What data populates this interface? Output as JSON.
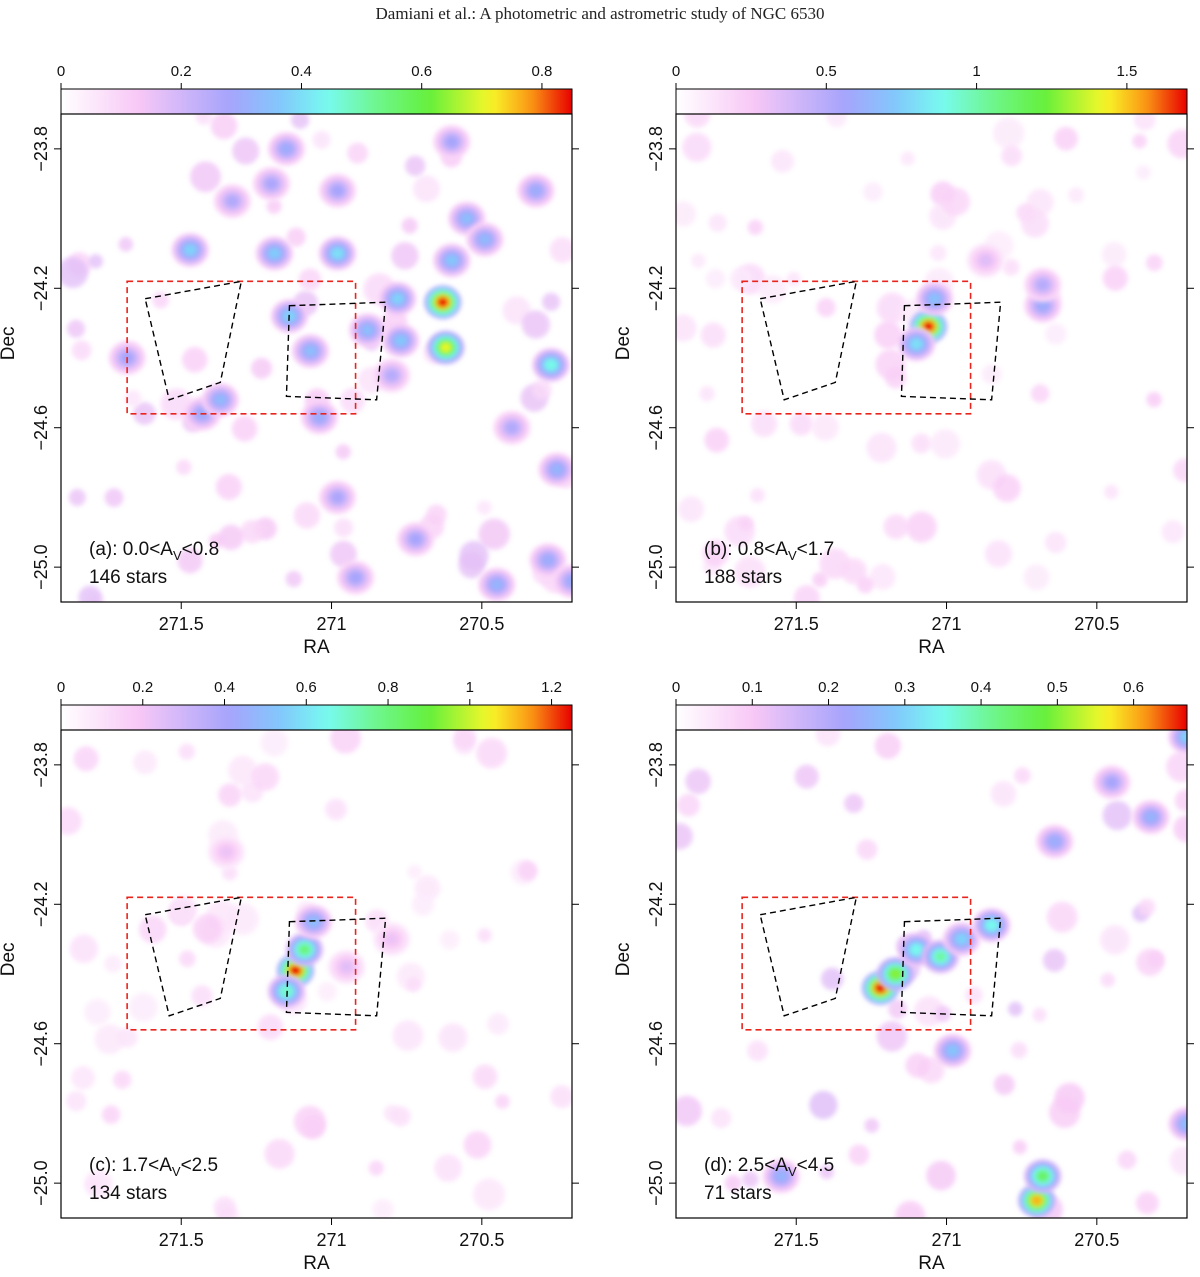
{
  "header": "Damiani et al.: A photometric and astrometric study of NGC 6530",
  "chart_data": [
    {
      "type": "heatmap",
      "panel": "a",
      "xlabel": "RA",
      "ylabel": "Dec",
      "xlim": [
        271.9,
        270.2
      ],
      "ylim": [
        -25.1,
        -23.7
      ],
      "x_ticks": [
        271.5,
        271,
        270.5
      ],
      "x_tick_labels": [
        "271.5",
        "271",
        "270.5"
      ],
      "y_ticks": [
        -23.8,
        -24.2,
        -24.6,
        -25.0
      ],
      "y_tick_labels": [
        "−23.8",
        "−24.2",
        "−24.6",
        "−25.0"
      ],
      "colorbar": {
        "min": 0,
        "max": 0.85,
        "ticks": [
          0,
          0.2,
          0.4,
          0.6,
          0.8
        ],
        "tick_labels": [
          "0",
          "0.2",
          "0.4",
          "0.6",
          "0.8"
        ]
      },
      "annotation": {
        "prefix": "(a): 0.0<A",
        "sub": "V",
        "suffix": "<0.8",
        "count": "146 stars"
      },
      "peaks": [
        {
          "ra": 270.63,
          "dec": -24.24,
          "value": 0.84
        },
        {
          "ra": 270.62,
          "dec": -24.37,
          "value": 0.7
        },
        {
          "ra": 270.27,
          "dec": -24.42,
          "value": 0.45
        },
        {
          "ra": 270.77,
          "dec": -24.35,
          "value": 0.36
        },
        {
          "ra": 270.78,
          "dec": -24.23,
          "value": 0.38
        },
        {
          "ra": 271.14,
          "dec": -24.28,
          "value": 0.38
        },
        {
          "ra": 271.47,
          "dec": -24.09,
          "value": 0.38
        },
        {
          "ra": 271.19,
          "dec": -24.1,
          "value": 0.37
        },
        {
          "ra": 270.98,
          "dec": -24.1,
          "value": 0.4
        },
        {
          "ra": 270.88,
          "dec": -24.32,
          "value": 0.34
        },
        {
          "ra": 270.55,
          "dec": -24.0,
          "value": 0.34
        },
        {
          "ra": 270.6,
          "dec": -24.12,
          "value": 0.36
        },
        {
          "ra": 270.49,
          "dec": -24.06,
          "value": 0.33
        },
        {
          "ra": 271.07,
          "dec": -24.38,
          "value": 0.34
        },
        {
          "ra": 271.43,
          "dec": -24.56,
          "value": 0.3
        },
        {
          "ra": 271.37,
          "dec": -24.52,
          "value": 0.33
        },
        {
          "ra": 271.04,
          "dec": -24.57,
          "value": 0.3
        },
        {
          "ra": 271.15,
          "dec": -23.8,
          "value": 0.3
        },
        {
          "ra": 270.98,
          "dec": -23.92,
          "value": 0.28
        },
        {
          "ra": 270.32,
          "dec": -23.92,
          "value": 0.3
        },
        {
          "ra": 270.6,
          "dec": -23.78,
          "value": 0.28
        },
        {
          "ra": 271.2,
          "dec": -23.9,
          "value": 0.27
        },
        {
          "ra": 271.33,
          "dec": -23.95,
          "value": 0.26
        },
        {
          "ra": 270.25,
          "dec": -24.72,
          "value": 0.32
        },
        {
          "ra": 270.28,
          "dec": -24.98,
          "value": 0.3
        },
        {
          "ra": 270.2,
          "dec": -25.04,
          "value": 0.3
        },
        {
          "ra": 270.72,
          "dec": -24.92,
          "value": 0.28
        },
        {
          "ra": 270.98,
          "dec": -24.8,
          "value": 0.27
        },
        {
          "ra": 271.68,
          "dec": -24.4,
          "value": 0.28
        },
        {
          "ra": 270.92,
          "dec": -25.03,
          "value": 0.28
        },
        {
          "ra": 270.45,
          "dec": -25.05,
          "value": 0.32
        },
        {
          "ra": 270.8,
          "dec": -24.45,
          "value": 0.25
        },
        {
          "ra": 270.4,
          "dec": -24.6,
          "value": 0.26
        }
      ],
      "background": {
        "level": 0.12,
        "blob_count": 70,
        "seed": 11
      }
    },
    {
      "type": "heatmap",
      "panel": "b",
      "xlabel": "RA",
      "ylabel": "Dec",
      "xlim": [
        271.9,
        270.2
      ],
      "ylim": [
        -25.1,
        -23.7
      ],
      "x_ticks": [
        271.5,
        271,
        270.5
      ],
      "x_tick_labels": [
        "271.5",
        "271",
        "270.5"
      ],
      "y_ticks": [
        -23.8,
        -24.2,
        -24.6,
        -25.0
      ],
      "y_tick_labels": [
        "−23.8",
        "−24.2",
        "−24.6",
        "−25.0"
      ],
      "colorbar": {
        "min": 0,
        "max": 1.7,
        "ticks": [
          0,
          0.5,
          1,
          1.5
        ],
        "tick_labels": [
          "0",
          "0.5",
          "1",
          "1.5"
        ]
      },
      "annotation": {
        "prefix": "(b): 0.8<A",
        "sub": "V",
        "suffix": "<1.7",
        "count": "188 stars"
      },
      "peaks": [
        {
          "ra": 271.06,
          "dec": -24.31,
          "value": 1.7
        },
        {
          "ra": 271.04,
          "dec": -24.23,
          "value": 0.7
        },
        {
          "ra": 271.1,
          "dec": -24.36,
          "value": 0.8
        },
        {
          "ra": 270.68,
          "dec": -24.25,
          "value": 0.6
        },
        {
          "ra": 270.68,
          "dec": -24.19,
          "value": 0.5
        },
        {
          "ra": 270.87,
          "dec": -24.12,
          "value": 0.35
        }
      ],
      "background": {
        "level": 0.18,
        "blob_count": 80,
        "seed": 23
      }
    },
    {
      "type": "heatmap",
      "panel": "c",
      "xlabel": "RA",
      "ylabel": "Dec",
      "xlim": [
        271.9,
        270.2
      ],
      "ylim": [
        -25.1,
        -23.7
      ],
      "x_ticks": [
        271.5,
        271,
        270.5
      ],
      "x_tick_labels": [
        "271.5",
        "271",
        "270.5"
      ],
      "y_ticks": [
        -23.8,
        -24.2,
        -24.6,
        -25.0
      ],
      "y_tick_labels": [
        "−23.8",
        "−24.2",
        "−24.6",
        "−25.0"
      ],
      "colorbar": {
        "min": 0,
        "max": 1.25,
        "ticks": [
          0,
          0.2,
          0.4,
          0.6,
          0.8,
          1,
          1.2
        ],
        "tick_labels": [
          "0",
          "0.2",
          "0.4",
          "0.6",
          "0.8",
          "1",
          "1.2"
        ]
      },
      "annotation": {
        "prefix": "(c): 1.7<A",
        "sub": "V",
        "suffix": "<2.5",
        "count": "134 stars"
      },
      "peaks": [
        {
          "ra": 271.12,
          "dec": -24.39,
          "value": 1.25
        },
        {
          "ra": 271.09,
          "dec": -24.33,
          "value": 0.8
        },
        {
          "ra": 271.15,
          "dec": -24.45,
          "value": 0.7
        },
        {
          "ra": 271.06,
          "dec": -24.25,
          "value": 0.5
        },
        {
          "ra": 270.95,
          "dec": -24.38,
          "value": 0.25
        },
        {
          "ra": 270.8,
          "dec": -24.3,
          "value": 0.22
        },
        {
          "ra": 271.35,
          "dec": -24.05,
          "value": 0.22
        }
      ],
      "background": {
        "level": 0.12,
        "blob_count": 70,
        "seed": 37
      }
    },
    {
      "type": "heatmap",
      "panel": "d",
      "xlabel": "RA",
      "ylabel": "Dec",
      "xlim": [
        271.9,
        270.2
      ],
      "ylim": [
        -25.1,
        -23.7
      ],
      "x_ticks": [
        271.5,
        271,
        270.5
      ],
      "x_tick_labels": [
        "271.5",
        "271",
        "270.5"
      ],
      "y_ticks": [
        -23.8,
        -24.2,
        -24.6,
        -25.0
      ],
      "y_tick_labels": [
        "−23.8",
        "−24.2",
        "−24.6",
        "−25.0"
      ],
      "colorbar": {
        "min": 0,
        "max": 0.67,
        "ticks": [
          0,
          0.1,
          0.2,
          0.3,
          0.4,
          0.5,
          0.6
        ],
        "tick_labels": [
          "0",
          "0.1",
          "0.2",
          "0.3",
          "0.4",
          "0.5",
          "0.6"
        ]
      },
      "annotation": {
        "prefix": "(d): 2.5<A",
        "sub": "V",
        "suffix": "<4.5",
        "count": "71 stars"
      },
      "peaks": [
        {
          "ra": 271.22,
          "dec": -24.44,
          "value": 0.67
        },
        {
          "ra": 271.17,
          "dec": -24.4,
          "value": 0.5
        },
        {
          "ra": 271.1,
          "dec": -24.33,
          "value": 0.35
        },
        {
          "ra": 271.02,
          "dec": -24.35,
          "value": 0.4
        },
        {
          "ra": 270.95,
          "dec": -24.3,
          "value": 0.3
        },
        {
          "ra": 270.85,
          "dec": -24.26,
          "value": 0.35
        },
        {
          "ra": 270.7,
          "dec": -25.05,
          "value": 0.6
        },
        {
          "ra": 270.68,
          "dec": -24.98,
          "value": 0.45
        },
        {
          "ra": 270.2,
          "dec": -23.72,
          "value": 0.3
        },
        {
          "ra": 270.32,
          "dec": -23.95,
          "value": 0.25
        },
        {
          "ra": 270.2,
          "dec": -24.83,
          "value": 0.27
        },
        {
          "ra": 270.98,
          "dec": -24.62,
          "value": 0.28
        },
        {
          "ra": 270.64,
          "dec": -24.02,
          "value": 0.24
        },
        {
          "ra": 270.45,
          "dec": -23.85,
          "value": 0.22
        },
        {
          "ra": 271.55,
          "dec": -24.98,
          "value": 0.25
        }
      ],
      "background": {
        "level": 0.1,
        "blob_count": 55,
        "seed": 51
      }
    }
  ],
  "overlays": {
    "red_box": {
      "ra": [
        271.68,
        270.92
      ],
      "dec": [
        -24.18,
        -24.56
      ]
    },
    "black_quads": [
      [
        [
          271.62,
          -24.23
        ],
        [
          271.3,
          -24.18
        ],
        [
          271.37,
          -24.47
        ],
        [
          271.54,
          -24.52
        ]
      ],
      [
        [
          271.14,
          -24.25
        ],
        [
          270.82,
          -24.24
        ],
        [
          270.85,
          -24.52
        ],
        [
          271.15,
          -24.51
        ]
      ]
    ]
  }
}
